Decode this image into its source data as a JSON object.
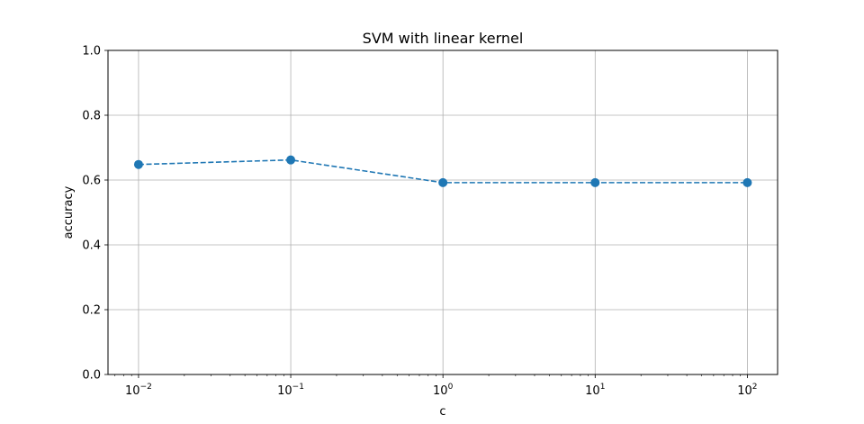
{
  "chart_data": {
    "type": "line",
    "title": "SVM with linear kernel",
    "xlabel": "c",
    "ylabel": "accuracy",
    "x_scale": "log",
    "xlim": [
      0.0063,
      158
    ],
    "ylim": [
      0.0,
      1.0
    ],
    "grid": true,
    "x_ticks": [
      {
        "value": 0.01,
        "base": "10",
        "exp": "−2"
      },
      {
        "value": 0.1,
        "base": "10",
        "exp": "−1"
      },
      {
        "value": 1,
        "base": "10",
        "exp": "0"
      },
      {
        "value": 10,
        "base": "10",
        "exp": "1"
      },
      {
        "value": 100,
        "base": "10",
        "exp": "2"
      }
    ],
    "y_ticks": [
      "0.0",
      "0.2",
      "0.4",
      "0.6",
      "0.8",
      "1.0"
    ],
    "series": [
      {
        "x": [
          0.01,
          0.1,
          1,
          10,
          100
        ],
        "y": [
          0.648,
          0.662,
          0.592,
          0.592,
          0.592
        ],
        "color": "#1f77b4",
        "line_style": "dashed",
        "marker": "circle"
      }
    ]
  }
}
